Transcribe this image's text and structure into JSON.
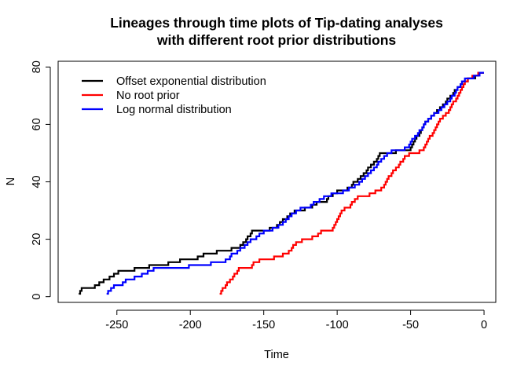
{
  "chart_data": {
    "type": "line",
    "title_line1": "Lineages through time plots of Tip-dating analyses",
    "title_line2": "with different root prior distributions",
    "xlabel": "Time",
    "ylabel": "N",
    "xlim": [
      -290,
      8
    ],
    "ylim": [
      -2,
      82
    ],
    "xticks": [
      "-250",
      "-200",
      "-150",
      "-100",
      "-50",
      "0"
    ],
    "yticks": [
      "0",
      "20",
      "40",
      "60",
      "80"
    ],
    "legend_position": "top-left",
    "grid": false,
    "series": [
      {
        "name": "Offset exponential distribution",
        "color": "#000000",
        "steps": [
          [
            -276,
            1
          ],
          [
            -275,
            2
          ],
          [
            -274,
            3
          ],
          [
            -265,
            4
          ],
          [
            -262,
            5
          ],
          [
            -259,
            6
          ],
          [
            -255,
            7
          ],
          [
            -252,
            8
          ],
          [
            -249,
            9
          ],
          [
            -238,
            10
          ],
          [
            -228,
            11
          ],
          [
            -215,
            12
          ],
          [
            -207,
            13
          ],
          [
            -195,
            14
          ],
          [
            -191,
            15
          ],
          [
            -182,
            16
          ],
          [
            -172,
            17
          ],
          [
            -166,
            18
          ],
          [
            -164,
            19
          ],
          [
            -162,
            20
          ],
          [
            -161,
            21
          ],
          [
            -159,
            22
          ],
          [
            -158,
            23
          ],
          [
            -146,
            24
          ],
          [
            -141,
            25
          ],
          [
            -139,
            26
          ],
          [
            -137,
            27
          ],
          [
            -134,
            28
          ],
          [
            -132,
            29
          ],
          [
            -129,
            30
          ],
          [
            -122,
            31
          ],
          [
            -117,
            32
          ],
          [
            -114,
            33
          ],
          [
            -107,
            34
          ],
          [
            -106,
            35
          ],
          [
            -103,
            36
          ],
          [
            -100,
            37
          ],
          [
            -93,
            38
          ],
          [
            -90,
            39
          ],
          [
            -89,
            40
          ],
          [
            -86,
            41
          ],
          [
            -84,
            42
          ],
          [
            -82,
            43
          ],
          [
            -80,
            44
          ],
          [
            -79,
            45
          ],
          [
            -77,
            46
          ],
          [
            -75,
            47
          ],
          [
            -73,
            48
          ],
          [
            -72,
            49
          ],
          [
            -71,
            50
          ],
          [
            -60,
            51
          ],
          [
            -50,
            52
          ],
          [
            -49,
            53
          ],
          [
            -48,
            54
          ],
          [
            -47,
            55
          ],
          [
            -46,
            56
          ],
          [
            -44,
            57
          ],
          [
            -43,
            58
          ],
          [
            -42,
            59
          ],
          [
            -41,
            60
          ],
          [
            -40,
            61
          ],
          [
            -38,
            62
          ],
          [
            -36,
            63
          ],
          [
            -34,
            64
          ],
          [
            -32,
            65
          ],
          [
            -30,
            66
          ],
          [
            -28,
            67
          ],
          [
            -26,
            68
          ],
          [
            -25,
            69
          ],
          [
            -23,
            70
          ],
          [
            -21,
            71
          ],
          [
            -20,
            72
          ],
          [
            -18,
            73
          ],
          [
            -16,
            74
          ],
          [
            -15,
            75
          ],
          [
            -11,
            76
          ],
          [
            -6,
            77
          ],
          [
            -4,
            78
          ],
          [
            0,
            78
          ]
        ]
      },
      {
        "name": "No root prior",
        "color": "#ff0000",
        "steps": [
          [
            -180,
            1
          ],
          [
            -179,
            2
          ],
          [
            -178,
            3
          ],
          [
            -176,
            4
          ],
          [
            -175,
            5
          ],
          [
            -173,
            6
          ],
          [
            -171,
            7
          ],
          [
            -170,
            8
          ],
          [
            -168,
            9
          ],
          [
            -167,
            10
          ],
          [
            -158,
            11
          ],
          [
            -157,
            12
          ],
          [
            -153,
            13
          ],
          [
            -143,
            14
          ],
          [
            -137,
            15
          ],
          [
            -133,
            16
          ],
          [
            -131,
            17
          ],
          [
            -130,
            18
          ],
          [
            -128,
            19
          ],
          [
            -124,
            20
          ],
          [
            -117,
            21
          ],
          [
            -113,
            22
          ],
          [
            -111,
            23
          ],
          [
            -103,
            24
          ],
          [
            -102,
            25
          ],
          [
            -101,
            26
          ],
          [
            -100,
            27
          ],
          [
            -99,
            28
          ],
          [
            -98,
            29
          ],
          [
            -97,
            30
          ],
          [
            -95,
            31
          ],
          [
            -91,
            32
          ],
          [
            -90,
            33
          ],
          [
            -88,
            34
          ],
          [
            -86,
            35
          ],
          [
            -78,
            36
          ],
          [
            -74,
            37
          ],
          [
            -70,
            38
          ],
          [
            -68,
            39
          ],
          [
            -67,
            40
          ],
          [
            -66,
            41
          ],
          [
            -65,
            42
          ],
          [
            -63,
            43
          ],
          [
            -62,
            44
          ],
          [
            -60,
            45
          ],
          [
            -58,
            46
          ],
          [
            -57,
            47
          ],
          [
            -55,
            48
          ],
          [
            -54,
            49
          ],
          [
            -51,
            50
          ],
          [
            -44,
            51
          ],
          [
            -41,
            52
          ],
          [
            -40,
            53
          ],
          [
            -39,
            54
          ],
          [
            -38,
            55
          ],
          [
            -37,
            56
          ],
          [
            -35,
            57
          ],
          [
            -34,
            58
          ],
          [
            -33,
            59
          ],
          [
            -32,
            60
          ],
          [
            -31,
            61
          ],
          [
            -30,
            62
          ],
          [
            -28,
            63
          ],
          [
            -26,
            64
          ],
          [
            -24,
            65
          ],
          [
            -23,
            66
          ],
          [
            -22,
            67
          ],
          [
            -21,
            68
          ],
          [
            -19,
            69
          ],
          [
            -18,
            70
          ],
          [
            -17,
            71
          ],
          [
            -16,
            72
          ],
          [
            -15,
            73
          ],
          [
            -14,
            74
          ],
          [
            -13,
            75
          ],
          [
            -11,
            76
          ],
          [
            -8,
            77
          ],
          [
            -4,
            78
          ],
          [
            0,
            78
          ]
        ]
      },
      {
        "name": "Log normal distribution",
        "color": "#0000ff",
        "steps": [
          [
            -257,
            1
          ],
          [
            -256,
            2
          ],
          [
            -254,
            3
          ],
          [
            -252,
            4
          ],
          [
            -246,
            5
          ],
          [
            -244,
            6
          ],
          [
            -238,
            7
          ],
          [
            -233,
            8
          ],
          [
            -229,
            9
          ],
          [
            -225,
            10
          ],
          [
            -201,
            11
          ],
          [
            -186,
            12
          ],
          [
            -176,
            13
          ],
          [
            -173,
            14
          ],
          [
            -172,
            15
          ],
          [
            -168,
            16
          ],
          [
            -166,
            17
          ],
          [
            -163,
            18
          ],
          [
            -161,
            19
          ],
          [
            -159,
            20
          ],
          [
            -155,
            21
          ],
          [
            -153,
            22
          ],
          [
            -150,
            23
          ],
          [
            -144,
            24
          ],
          [
            -140,
            25
          ],
          [
            -137,
            26
          ],
          [
            -135,
            27
          ],
          [
            -133,
            28
          ],
          [
            -131,
            29
          ],
          [
            -128,
            30
          ],
          [
            -125,
            31
          ],
          [
            -118,
            32
          ],
          [
            -116,
            33
          ],
          [
            -112,
            34
          ],
          [
            -109,
            35
          ],
          [
            -104,
            36
          ],
          [
            -96,
            37
          ],
          [
            -92,
            38
          ],
          [
            -88,
            39
          ],
          [
            -85,
            40
          ],
          [
            -83,
            41
          ],
          [
            -81,
            42
          ],
          [
            -79,
            43
          ],
          [
            -77,
            44
          ],
          [
            -75,
            45
          ],
          [
            -73,
            46
          ],
          [
            -72,
            47
          ],
          [
            -70,
            48
          ],
          [
            -68,
            49
          ],
          [
            -66,
            50
          ],
          [
            -63,
            51
          ],
          [
            -54,
            52
          ],
          [
            -51,
            53
          ],
          [
            -50,
            54
          ],
          [
            -49,
            55
          ],
          [
            -47,
            56
          ],
          [
            -45,
            57
          ],
          [
            -44,
            58
          ],
          [
            -42,
            59
          ],
          [
            -41,
            60
          ],
          [
            -40,
            61
          ],
          [
            -38,
            62
          ],
          [
            -36,
            63
          ],
          [
            -34,
            64
          ],
          [
            -31,
            65
          ],
          [
            -29,
            66
          ],
          [
            -27,
            67
          ],
          [
            -25,
            68
          ],
          [
            -23,
            69
          ],
          [
            -22,
            70
          ],
          [
            -20,
            71
          ],
          [
            -19,
            72
          ],
          [
            -18,
            73
          ],
          [
            -16,
            74
          ],
          [
            -15,
            75
          ],
          [
            -13,
            76
          ],
          [
            -7,
            77
          ],
          [
            -3,
            78
          ],
          [
            0,
            78
          ]
        ]
      }
    ]
  }
}
